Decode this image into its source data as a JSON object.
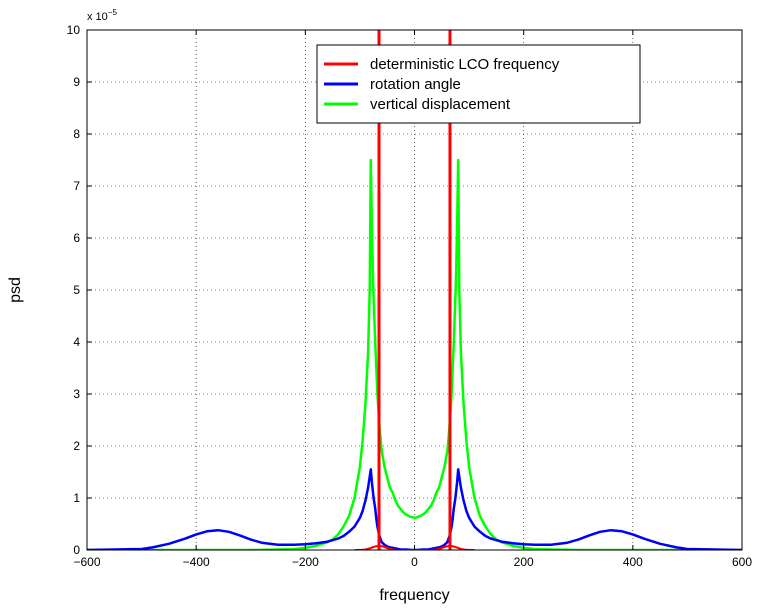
{
  "chart_data": {
    "type": "line",
    "xlabel": "frequency",
    "ylabel": "psd",
    "xlim": [
      -600,
      600
    ],
    "ylim": [
      0,
      10
    ],
    "y_multiplier_label": {
      "base": "x 10",
      "exponent": "−5"
    },
    "x_ticks": [
      "−600",
      "−400",
      "−200",
      "0",
      "200",
      "400",
      "600"
    ],
    "y_ticks": [
      "0",
      "1",
      "2",
      "3",
      "4",
      "5",
      "6",
      "7",
      "8",
      "9",
      "10"
    ],
    "grid": true,
    "legend_position": "top-right",
    "series": [
      {
        "name": "deterministic LCO frequency",
        "color": "#ff0000",
        "style": "vertical-lines",
        "x_positions": [
          -65,
          65
        ]
      },
      {
        "name": "rotation angle",
        "color": "#0000ff",
        "x": [
          -600,
          -500,
          -480,
          -450,
          -420,
          -400,
          -380,
          -360,
          -340,
          -320,
          -300,
          -280,
          -250,
          -220,
          -200,
          -180,
          -160,
          -140,
          -130,
          -120,
          -110,
          -100,
          -95,
          -90,
          -85,
          -80,
          -78,
          -75,
          -72,
          -70,
          -68,
          -65,
          -62,
          -60,
          -55,
          -50,
          -45,
          -40,
          -35,
          -30,
          -25,
          -20,
          -15,
          -10,
          -5,
          0,
          5,
          10,
          15,
          20,
          25,
          30,
          35,
          40,
          45,
          50,
          55,
          60,
          62,
          65,
          68,
          70,
          72,
          75,
          78,
          80,
          85,
          90,
          95,
          100,
          110,
          120,
          130,
          140,
          160,
          180,
          200,
          220,
          250,
          280,
          300,
          320,
          340,
          360,
          380,
          400,
          420,
          450,
          480,
          500,
          600
        ],
        "y": [
          0,
          0.02,
          0.05,
          0.12,
          0.22,
          0.3,
          0.36,
          0.38,
          0.35,
          0.28,
          0.2,
          0.14,
          0.1,
          0.1,
          0.11,
          0.13,
          0.16,
          0.22,
          0.27,
          0.35,
          0.45,
          0.62,
          0.75,
          0.95,
          1.2,
          1.55,
          1.3,
          1.0,
          0.8,
          0.6,
          0.45,
          0.3,
          0.2,
          0.15,
          0.1,
          0.07,
          0.05,
          0.04,
          0.03,
          0.02,
          0.01,
          0.01,
          0.01,
          0.005,
          0.002,
          0,
          0.002,
          0.005,
          0.01,
          0.01,
          0.01,
          0.02,
          0.03,
          0.04,
          0.05,
          0.07,
          0.1,
          0.15,
          0.2,
          0.3,
          0.45,
          0.6,
          0.8,
          1.0,
          1.3,
          1.55,
          1.2,
          0.95,
          0.75,
          0.62,
          0.45,
          0.35,
          0.27,
          0.22,
          0.16,
          0.13,
          0.11,
          0.1,
          0.1,
          0.14,
          0.2,
          0.28,
          0.35,
          0.38,
          0.36,
          0.3,
          0.22,
          0.12,
          0.05,
          0.02,
          0
        ]
      },
      {
        "name": "vertical displacement",
        "color": "#00ff00",
        "x": [
          -600,
          -300,
          -250,
          -220,
          -200,
          -180,
          -160,
          -150,
          -140,
          -130,
          -120,
          -110,
          -100,
          -95,
          -90,
          -85,
          -82,
          -80,
          -78,
          -76,
          -74,
          -72,
          -70,
          -68,
          -65,
          -62,
          -60,
          -55,
          -50,
          -45,
          -40,
          -35,
          -30,
          -25,
          -20,
          -15,
          -10,
          -5,
          0,
          5,
          10,
          15,
          20,
          25,
          30,
          35,
          40,
          45,
          50,
          55,
          60,
          62,
          65,
          68,
          70,
          72,
          74,
          76,
          78,
          80,
          82,
          85,
          90,
          95,
          100,
          110,
          120,
          130,
          140,
          150,
          160,
          180,
          200,
          220,
          250,
          300,
          600
        ],
        "y": [
          0,
          0,
          0.01,
          0.02,
          0.04,
          0.08,
          0.15,
          0.2,
          0.3,
          0.45,
          0.65,
          1.0,
          1.6,
          2.1,
          2.8,
          3.8,
          5.0,
          7.5,
          6.2,
          5.2,
          4.6,
          4.0,
          3.5,
          3.0,
          2.5,
          2.1,
          1.9,
          1.6,
          1.4,
          1.2,
          1.1,
          0.95,
          0.85,
          0.78,
          0.72,
          0.68,
          0.65,
          0.63,
          0.62,
          0.63,
          0.65,
          0.68,
          0.72,
          0.78,
          0.85,
          0.95,
          1.1,
          1.2,
          1.4,
          1.6,
          1.9,
          2.1,
          2.5,
          3.0,
          3.5,
          4.0,
          4.6,
          5.2,
          6.2,
          7.5,
          5.0,
          3.8,
          2.8,
          2.1,
          1.6,
          1.0,
          0.65,
          0.45,
          0.3,
          0.2,
          0.15,
          0.08,
          0.04,
          0.02,
          0.01,
          0,
          0
        ]
      }
    ]
  }
}
